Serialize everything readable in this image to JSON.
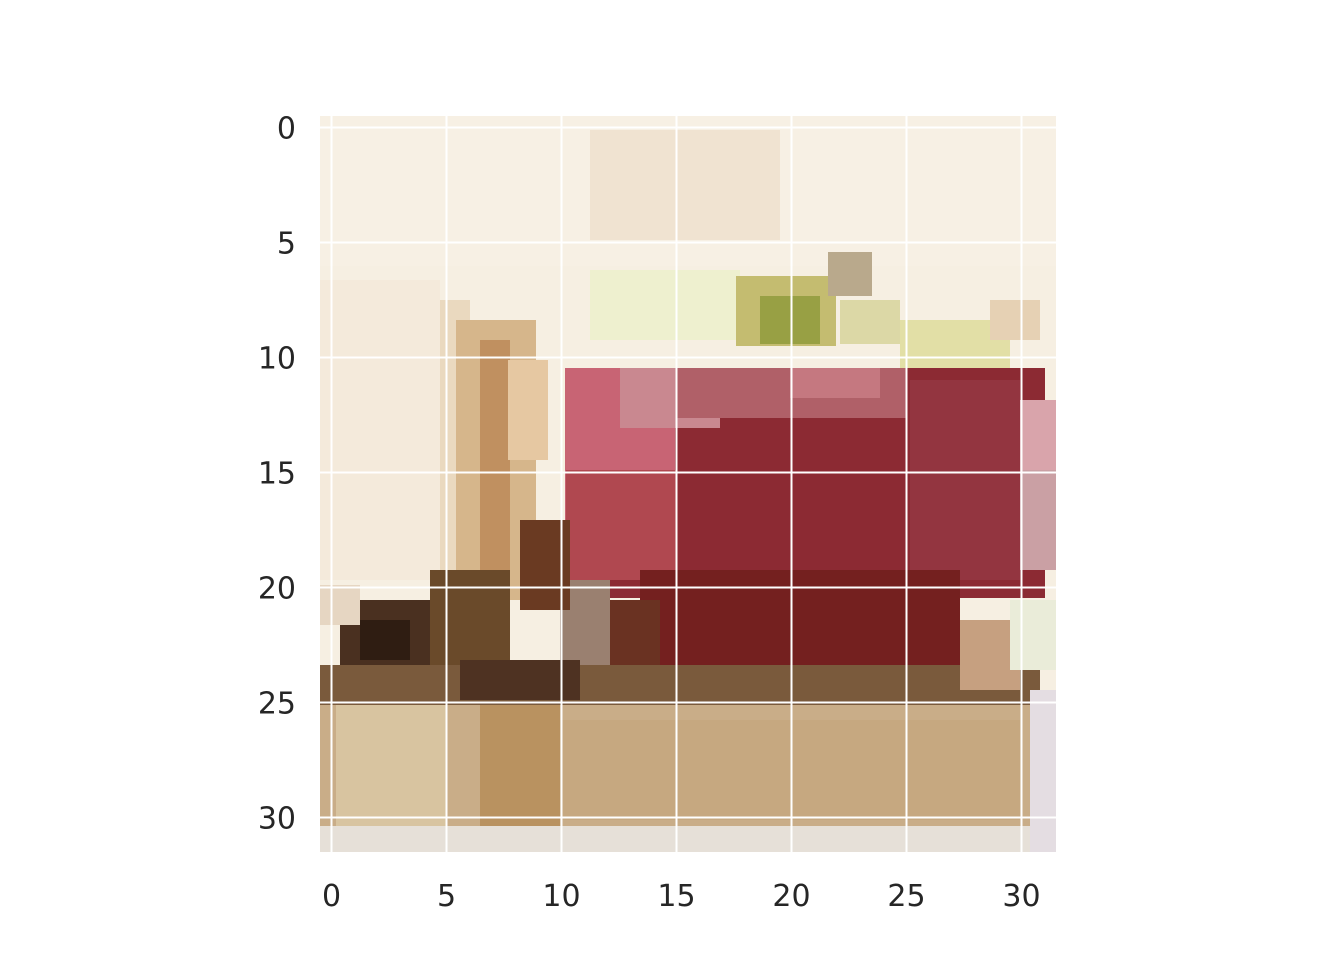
{
  "figure": {
    "kind": "pixelated photo of an apple shown with imshow-style axes",
    "image_grid": {
      "rows": 32,
      "cols": 32
    },
    "x_ticks": [
      "0",
      "5",
      "10",
      "15",
      "20",
      "25",
      "30"
    ],
    "y_ticks": [
      "0",
      "5",
      "10",
      "15",
      "20",
      "25",
      "30"
    ],
    "x_tick_values": [
      0,
      5,
      10,
      15,
      20,
      25,
      30
    ],
    "y_tick_values": [
      0,
      5,
      10,
      15,
      20,
      25,
      30
    ],
    "grid": true,
    "colors": {
      "grid": "#ffffff",
      "tick_text": "#262626",
      "background": "#f5efe0",
      "cream_light": "#faf2e6",
      "wood_tan": "#c9a474",
      "apple_red": "#8c2a33",
      "apple_dark_red": "#74201f",
      "apple_pink": "#c86474",
      "leaf_green": "#98a044",
      "shadow_dark": "#4a3020"
    }
  }
}
